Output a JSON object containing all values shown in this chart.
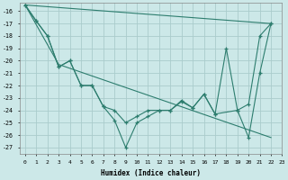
{
  "xlabel": "Humidex (Indice chaleur)",
  "background_color": "#cce8e8",
  "grid_color": "#aacccc",
  "line_color": "#2d7d6e",
  "x_min": -0.5,
  "x_max": 23.0,
  "y_min": -27.5,
  "y_max": -15.3,
  "yticks": [
    -16,
    -17,
    -18,
    -19,
    -20,
    -21,
    -22,
    -23,
    -24,
    -25,
    -26,
    -27
  ],
  "xticks": [
    0,
    1,
    2,
    3,
    4,
    5,
    6,
    7,
    8,
    9,
    10,
    11,
    12,
    13,
    14,
    15,
    16,
    17,
    18,
    19,
    20,
    21,
    22,
    23
  ],
  "series": [
    {
      "x": [
        0,
        1,
        2,
        3,
        4,
        5,
        6,
        7,
        8,
        9,
        10,
        11,
        12,
        13,
        14,
        15,
        16,
        17,
        18,
        19,
        20,
        21,
        22
      ],
      "y": [
        -15.5,
        -16.8,
        -18.0,
        -20.5,
        -20.0,
        -22.0,
        -22.0,
        -23.7,
        -24.8,
        -27.0,
        -25.0,
        -24.5,
        -24.0,
        -24.0,
        -23.2,
        -23.8,
        -22.7,
        -24.3,
        -19.0,
        -24.0,
        -26.2,
        -21.0,
        -17.0
      ]
    },
    {
      "x": [
        0,
        22
      ],
      "y": [
        -15.5,
        -17.0
      ]
    },
    {
      "x": [
        0,
        3,
        22
      ],
      "y": [
        -15.5,
        -20.3,
        -26.2
      ]
    },
    {
      "x": [
        0,
        1,
        2,
        3,
        4,
        5,
        6,
        7,
        8,
        9,
        10,
        11,
        12,
        13,
        14,
        15,
        16,
        17,
        19,
        20,
        21,
        22
      ],
      "y": [
        -15.5,
        -16.8,
        -18.0,
        -20.5,
        -20.0,
        -22.0,
        -22.0,
        -23.7,
        -24.0,
        -25.0,
        -24.5,
        -24.0,
        -24.0,
        -24.0,
        -23.3,
        -23.8,
        -22.7,
        -24.3,
        -24.0,
        -23.5,
        -18.0,
        -17.0
      ]
    }
  ]
}
